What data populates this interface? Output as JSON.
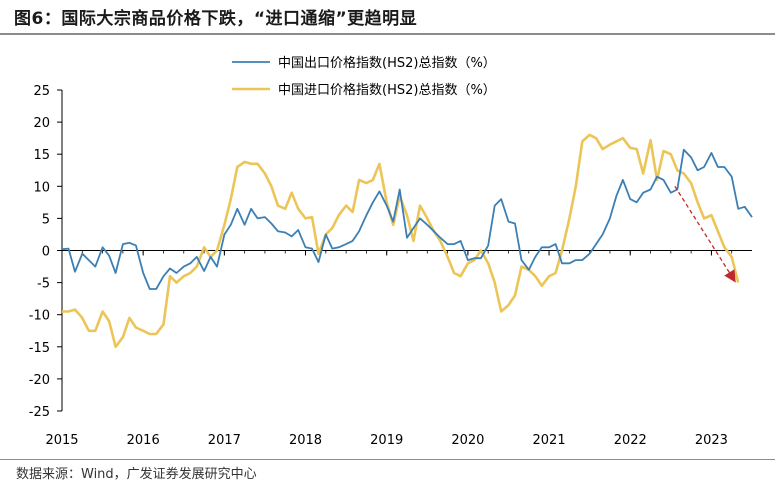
{
  "title": "图6：国际大宗商品价格下跌，“进口通缩”更趋明显",
  "source": "数据来源：Wind，广发证券发展研究中心",
  "colors": {
    "export": "#3b7fb5",
    "import": "#ecc558",
    "arrow": "#c0282d"
  },
  "chart_data": {
    "type": "line",
    "ylim": [
      -25,
      25
    ],
    "yticks": [
      "25",
      "20",
      "15",
      "10",
      "5",
      "0",
      "-5",
      "-10",
      "-15",
      "-20",
      "-25"
    ],
    "xticks": [
      "2015",
      "2016",
      "2017",
      "2018",
      "2019",
      "2020",
      "2021",
      "2022",
      "2023"
    ],
    "grid": false,
    "legend_position": "top",
    "arrow_annotation": {
      "from": {
        "x": 2022.55,
        "y": 10
      },
      "to": {
        "x": 2023.3,
        "y": -5
      }
    },
    "series": [
      {
        "name": "中国出口价格指数(HS2)总指数（%）",
        "points": [
          [
            2015.0,
            0.2
          ],
          [
            2015.08,
            0.3
          ],
          [
            2015.16,
            -3.3
          ],
          [
            2015.25,
            -0.5
          ],
          [
            2015.33,
            -1.5
          ],
          [
            2015.41,
            -2.5
          ],
          [
            2015.5,
            0.5
          ],
          [
            2015.58,
            -0.8
          ],
          [
            2015.66,
            -3.5
          ],
          [
            2015.75,
            1.0
          ],
          [
            2015.83,
            1.2
          ],
          [
            2015.91,
            0.8
          ],
          [
            2016.0,
            -3.5
          ],
          [
            2016.08,
            -6.0
          ],
          [
            2016.16,
            -6.0
          ],
          [
            2016.25,
            -4.0
          ],
          [
            2016.33,
            -2.8
          ],
          [
            2016.41,
            -3.5
          ],
          [
            2016.5,
            -2.5
          ],
          [
            2016.58,
            -2.0
          ],
          [
            2016.66,
            -1.0
          ],
          [
            2016.75,
            -3.2
          ],
          [
            2016.83,
            -1.0
          ],
          [
            2016.91,
            -2.5
          ],
          [
            2017.0,
            2.5
          ],
          [
            2017.08,
            4.0
          ],
          [
            2017.16,
            6.5
          ],
          [
            2017.25,
            4.0
          ],
          [
            2017.33,
            6.5
          ],
          [
            2017.41,
            5.0
          ],
          [
            2017.5,
            5.2
          ],
          [
            2017.58,
            4.2
          ],
          [
            2017.66,
            3.0
          ],
          [
            2017.75,
            2.8
          ],
          [
            2017.83,
            2.2
          ],
          [
            2017.91,
            3.2
          ],
          [
            2018.0,
            0.5
          ],
          [
            2018.08,
            0.3
          ],
          [
            2018.16,
            -1.8
          ],
          [
            2018.25,
            2.5
          ],
          [
            2018.33,
            0.3
          ],
          [
            2018.41,
            0.5
          ],
          [
            2018.5,
            1.0
          ],
          [
            2018.58,
            1.5
          ],
          [
            2018.66,
            3.0
          ],
          [
            2018.75,
            5.5
          ],
          [
            2018.83,
            7.5
          ],
          [
            2018.91,
            9.2
          ],
          [
            2019.0,
            7.0
          ],
          [
            2019.08,
            4.5
          ],
          [
            2019.16,
            9.5
          ],
          [
            2019.25,
            2.0
          ],
          [
            2019.33,
            3.5
          ],
          [
            2019.41,
            5.0
          ],
          [
            2019.5,
            4.0
          ],
          [
            2019.58,
            3.0
          ],
          [
            2019.66,
            2.0
          ],
          [
            2019.75,
            1.0
          ],
          [
            2019.83,
            1.0
          ],
          [
            2019.91,
            1.5
          ],
          [
            2020.0,
            -1.5
          ],
          [
            2020.08,
            -1.2
          ],
          [
            2020.16,
            -1.2
          ],
          [
            2020.25,
            0.8
          ],
          [
            2020.33,
            7.0
          ],
          [
            2020.41,
            8.0
          ],
          [
            2020.5,
            4.5
          ],
          [
            2020.58,
            4.2
          ],
          [
            2020.66,
            -1.5
          ],
          [
            2020.75,
            -3.0
          ],
          [
            2020.83,
            -1.0
          ],
          [
            2020.91,
            0.5
          ],
          [
            2021.0,
            0.5
          ],
          [
            2021.08,
            1.0
          ],
          [
            2021.16,
            -2.0
          ],
          [
            2021.25,
            -2.0
          ],
          [
            2021.33,
            -1.5
          ],
          [
            2021.41,
            -1.5
          ],
          [
            2021.5,
            -0.5
          ],
          [
            2021.58,
            1.0
          ],
          [
            2021.66,
            2.5
          ],
          [
            2021.75,
            5.0
          ],
          [
            2021.83,
            8.5
          ],
          [
            2021.91,
            11.0
          ],
          [
            2022.0,
            8.0
          ],
          [
            2022.08,
            7.5
          ],
          [
            2022.16,
            9.0
          ],
          [
            2022.25,
            9.5
          ],
          [
            2022.33,
            11.5
          ],
          [
            2022.41,
            11.0
          ],
          [
            2022.5,
            9.0
          ],
          [
            2022.58,
            9.5
          ],
          [
            2022.66,
            15.7
          ],
          [
            2022.75,
            14.5
          ],
          [
            2022.83,
            12.5
          ],
          [
            2022.91,
            13.0
          ],
          [
            2023.0,
            15.2
          ],
          [
            2023.08,
            13.0
          ],
          [
            2023.16,
            13.0
          ],
          [
            2023.25,
            11.5
          ],
          [
            2023.33,
            6.5
          ],
          [
            2023.41,
            6.8
          ],
          [
            2023.5,
            5.2
          ]
        ]
      },
      {
        "name": "中国进口价格指数(HS2)总指数（%）",
        "points": [
          [
            2015.0,
            -9.5
          ],
          [
            2015.08,
            -9.5
          ],
          [
            2015.16,
            -9.2
          ],
          [
            2015.25,
            -10.5
          ],
          [
            2015.33,
            -12.5
          ],
          [
            2015.41,
            -12.5
          ],
          [
            2015.5,
            -9.5
          ],
          [
            2015.58,
            -11.0
          ],
          [
            2015.66,
            -15.0
          ],
          [
            2015.75,
            -13.5
          ],
          [
            2015.83,
            -10.5
          ],
          [
            2015.91,
            -12.0
          ],
          [
            2016.0,
            -12.5
          ],
          [
            2016.08,
            -13.0
          ],
          [
            2016.16,
            -13.0
          ],
          [
            2016.25,
            -11.5
          ],
          [
            2016.33,
            -4.0
          ],
          [
            2016.41,
            -5.0
          ],
          [
            2016.5,
            -4.0
          ],
          [
            2016.58,
            -3.5
          ],
          [
            2016.66,
            -2.5
          ],
          [
            2016.75,
            0.5
          ],
          [
            2016.83,
            -1.0
          ],
          [
            2016.91,
            0.0
          ],
          [
            2017.0,
            4.0
          ],
          [
            2017.08,
            8.0
          ],
          [
            2017.16,
            13.0
          ],
          [
            2017.25,
            13.8
          ],
          [
            2017.33,
            13.5
          ],
          [
            2017.41,
            13.5
          ],
          [
            2017.5,
            12.0
          ],
          [
            2017.58,
            10.0
          ],
          [
            2017.66,
            7.0
          ],
          [
            2017.75,
            6.5
          ],
          [
            2017.83,
            9.0
          ],
          [
            2017.91,
            6.5
          ],
          [
            2018.0,
            5.0
          ],
          [
            2018.08,
            5.2
          ],
          [
            2018.16,
            -0.5
          ],
          [
            2018.25,
            2.5
          ],
          [
            2018.33,
            3.5
          ],
          [
            2018.41,
            5.5
          ],
          [
            2018.5,
            7.0
          ],
          [
            2018.58,
            6.0
          ],
          [
            2018.66,
            11.0
          ],
          [
            2018.75,
            10.5
          ],
          [
            2018.83,
            11.0
          ],
          [
            2018.91,
            13.5
          ],
          [
            2019.0,
            7.5
          ],
          [
            2019.08,
            4.0
          ],
          [
            2019.16,
            8.5
          ],
          [
            2019.25,
            5.5
          ],
          [
            2019.33,
            1.5
          ],
          [
            2019.41,
            7.0
          ],
          [
            2019.5,
            5.0
          ],
          [
            2019.58,
            3.0
          ],
          [
            2019.66,
            1.5
          ],
          [
            2019.75,
            -1.0
          ],
          [
            2019.83,
            -3.5
          ],
          [
            2019.91,
            -4.0
          ],
          [
            2020.0,
            -2.0
          ],
          [
            2020.08,
            -1.5
          ],
          [
            2020.16,
            0.0
          ],
          [
            2020.25,
            -2.0
          ],
          [
            2020.33,
            -5.0
          ],
          [
            2020.41,
            -9.5
          ],
          [
            2020.5,
            -8.5
          ],
          [
            2020.58,
            -7.0
          ],
          [
            2020.66,
            -2.5
          ],
          [
            2020.75,
            -3.0
          ],
          [
            2020.83,
            -4.0
          ],
          [
            2020.91,
            -5.5
          ],
          [
            2021.0,
            -4.0
          ],
          [
            2021.08,
            -3.5
          ],
          [
            2021.16,
            0.0
          ],
          [
            2021.25,
            5.0
          ],
          [
            2021.33,
            10.0
          ],
          [
            2021.41,
            17.0
          ],
          [
            2021.5,
            18.0
          ],
          [
            2021.58,
            17.5
          ],
          [
            2021.66,
            15.8
          ],
          [
            2021.75,
            16.5
          ],
          [
            2021.83,
            17.0
          ],
          [
            2021.91,
            17.5
          ],
          [
            2022.0,
            16.0
          ],
          [
            2022.08,
            15.8
          ],
          [
            2022.16,
            12.0
          ],
          [
            2022.25,
            17.2
          ],
          [
            2022.33,
            11.0
          ],
          [
            2022.41,
            15.5
          ],
          [
            2022.5,
            15.0
          ],
          [
            2022.58,
            12.5
          ],
          [
            2022.66,
            12.0
          ],
          [
            2022.75,
            10.5
          ],
          [
            2022.83,
            7.5
          ],
          [
            2022.91,
            5.0
          ],
          [
            2023.0,
            5.5
          ],
          [
            2023.08,
            3.0
          ],
          [
            2023.16,
            0.5
          ],
          [
            2023.25,
            -1.0
          ],
          [
            2023.33,
            -5.0
          ]
        ]
      }
    ]
  }
}
